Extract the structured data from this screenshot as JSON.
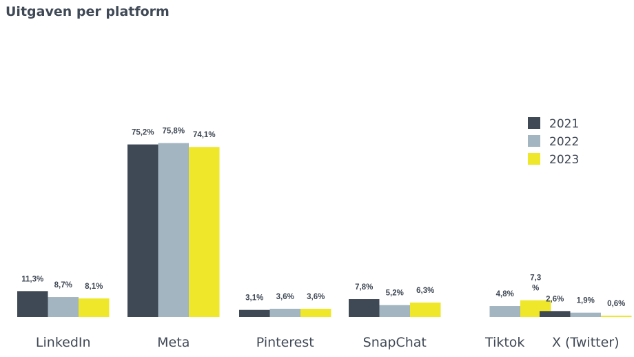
{
  "chart_data": {
    "type": "bar",
    "title": "Uitgaven per platform",
    "categories": [
      "LinkedIn",
      "Meta",
      "Pinterest",
      "SnapChat",
      "Tiktok",
      "X (Twitter)"
    ],
    "series": [
      {
        "name": "2021",
        "color": "#3f4855",
        "values": [
          11.3,
          75.2,
          3.1,
          7.8,
          null,
          2.6
        ],
        "labels": [
          "11,3%",
          "75,2%",
          "3,1%",
          "7,8%",
          "",
          "2,6%"
        ]
      },
      {
        "name": "2022",
        "color": "#a3b5c1",
        "values": [
          8.7,
          75.8,
          3.6,
          5.2,
          4.8,
          1.9
        ],
        "labels": [
          "8,7%",
          "75,8%",
          "3,6%",
          "5,2%",
          "4,8%",
          "1,9%"
        ]
      },
      {
        "name": "2023",
        "color": "#eee72a",
        "values": [
          8.1,
          74.1,
          3.6,
          6.3,
          7.3,
          0.6
        ],
        "labels": [
          "8,1%",
          "74,1%",
          "3,6%",
          "6,3%",
          "7,3\n%",
          "0,6%"
        ]
      }
    ],
    "ylim": [
      0,
      80
    ],
    "grid": false,
    "legend_position": "top-right"
  }
}
